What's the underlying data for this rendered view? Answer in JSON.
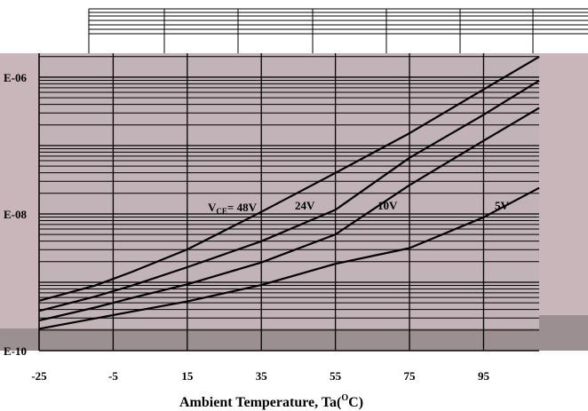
{
  "chart_data": {
    "type": "line",
    "title": "",
    "xlabel": {
      "main": "Ambient Temperature, Ta(",
      "sup": "O",
      "tail": "C)"
    },
    "ylabel": "",
    "x_ticks": [
      "-25",
      "-5",
      "15",
      "35",
      "55",
      "75",
      "95"
    ],
    "x_tick_values": [
      -25,
      -5,
      15,
      35,
      55,
      75,
      95
    ],
    "xlim": [
      -25,
      110
    ],
    "y_ticks": [
      "E-06",
      "E-08",
      "E-10"
    ],
    "y_tick_values": [
      -6,
      -8,
      -10
    ],
    "ylim_log10": [
      -10,
      -5.65
    ],
    "y_scale": "log",
    "grid": true,
    "series": [
      {
        "name": "V_CE= 48V",
        "label_main": "V",
        "label_sub": "CE",
        "label_tail": "= 48V",
        "x": [
          -25,
          -10,
          0,
          15,
          35,
          55,
          75,
          95,
          110
        ],
        "log_y": [
          -9.27,
          -9.05,
          -8.85,
          -8.52,
          -7.97,
          -7.4,
          -6.82,
          -6.18,
          -5.7
        ]
      },
      {
        "name": "24V",
        "label_main": "24V",
        "x": [
          -25,
          -10,
          0,
          15,
          35,
          55,
          75,
          95,
          110
        ],
        "log_y": [
          -9.42,
          -9.21,
          -9.05,
          -8.78,
          -8.4,
          -7.94,
          -7.18,
          -6.55,
          -6.05
        ]
      },
      {
        "name": "10V",
        "label_main": "10V",
        "x": [
          -25,
          -10,
          0,
          15,
          35,
          55,
          75,
          95,
          110
        ],
        "log_y": [
          -9.56,
          -9.37,
          -9.23,
          -9.03,
          -8.71,
          -8.3,
          -7.58,
          -6.93,
          -6.45
        ]
      },
      {
        "name": "5V",
        "label_main": "5V",
        "x": [
          -25,
          -10,
          0,
          15,
          35,
          55,
          75,
          95,
          110
        ],
        "log_y": [
          -9.68,
          -9.53,
          -9.43,
          -9.28,
          -9.04,
          -8.73,
          -8.5,
          -8.05,
          -7.62
        ]
      }
    ]
  }
}
